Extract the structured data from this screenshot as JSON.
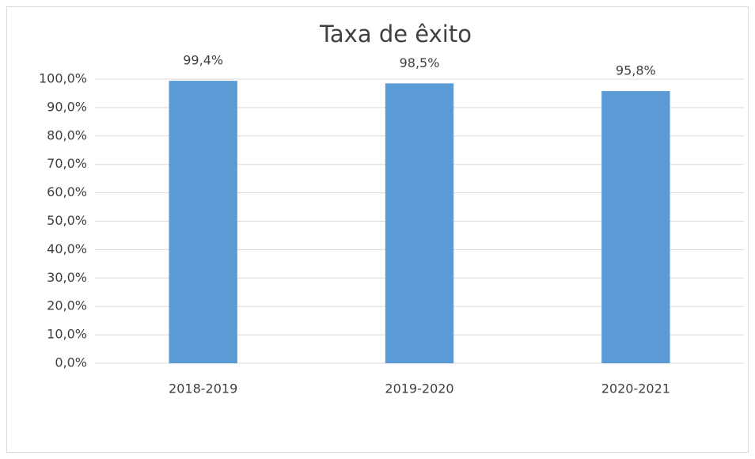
{
  "chart_data": {
    "type": "bar",
    "title": "Taxa de êxito",
    "categories": [
      "2018-2019",
      "2019-2020",
      "2020-2021"
    ],
    "values": [
      99.4,
      98.5,
      95.8
    ],
    "value_labels": [
      "99,4%",
      "98,5%",
      "95,8%"
    ],
    "color": "#5b9bd5",
    "ylim": [
      0,
      100
    ],
    "yticks": [
      {
        "value": 0,
        "label": "0,0%"
      },
      {
        "value": 10,
        "label": "10,0%"
      },
      {
        "value": 20,
        "label": "20,0%"
      },
      {
        "value": 30,
        "label": "30,0%"
      },
      {
        "value": 40,
        "label": "40,0%"
      },
      {
        "value": 50,
        "label": "50,0%"
      },
      {
        "value": 60,
        "label": "60,0%"
      },
      {
        "value": 70,
        "label": "70,0%"
      },
      {
        "value": 80,
        "label": "80,0%"
      },
      {
        "value": 90,
        "label": "90,0%"
      },
      {
        "value": 100,
        "label": "100,0%"
      }
    ],
    "grid": true
  }
}
